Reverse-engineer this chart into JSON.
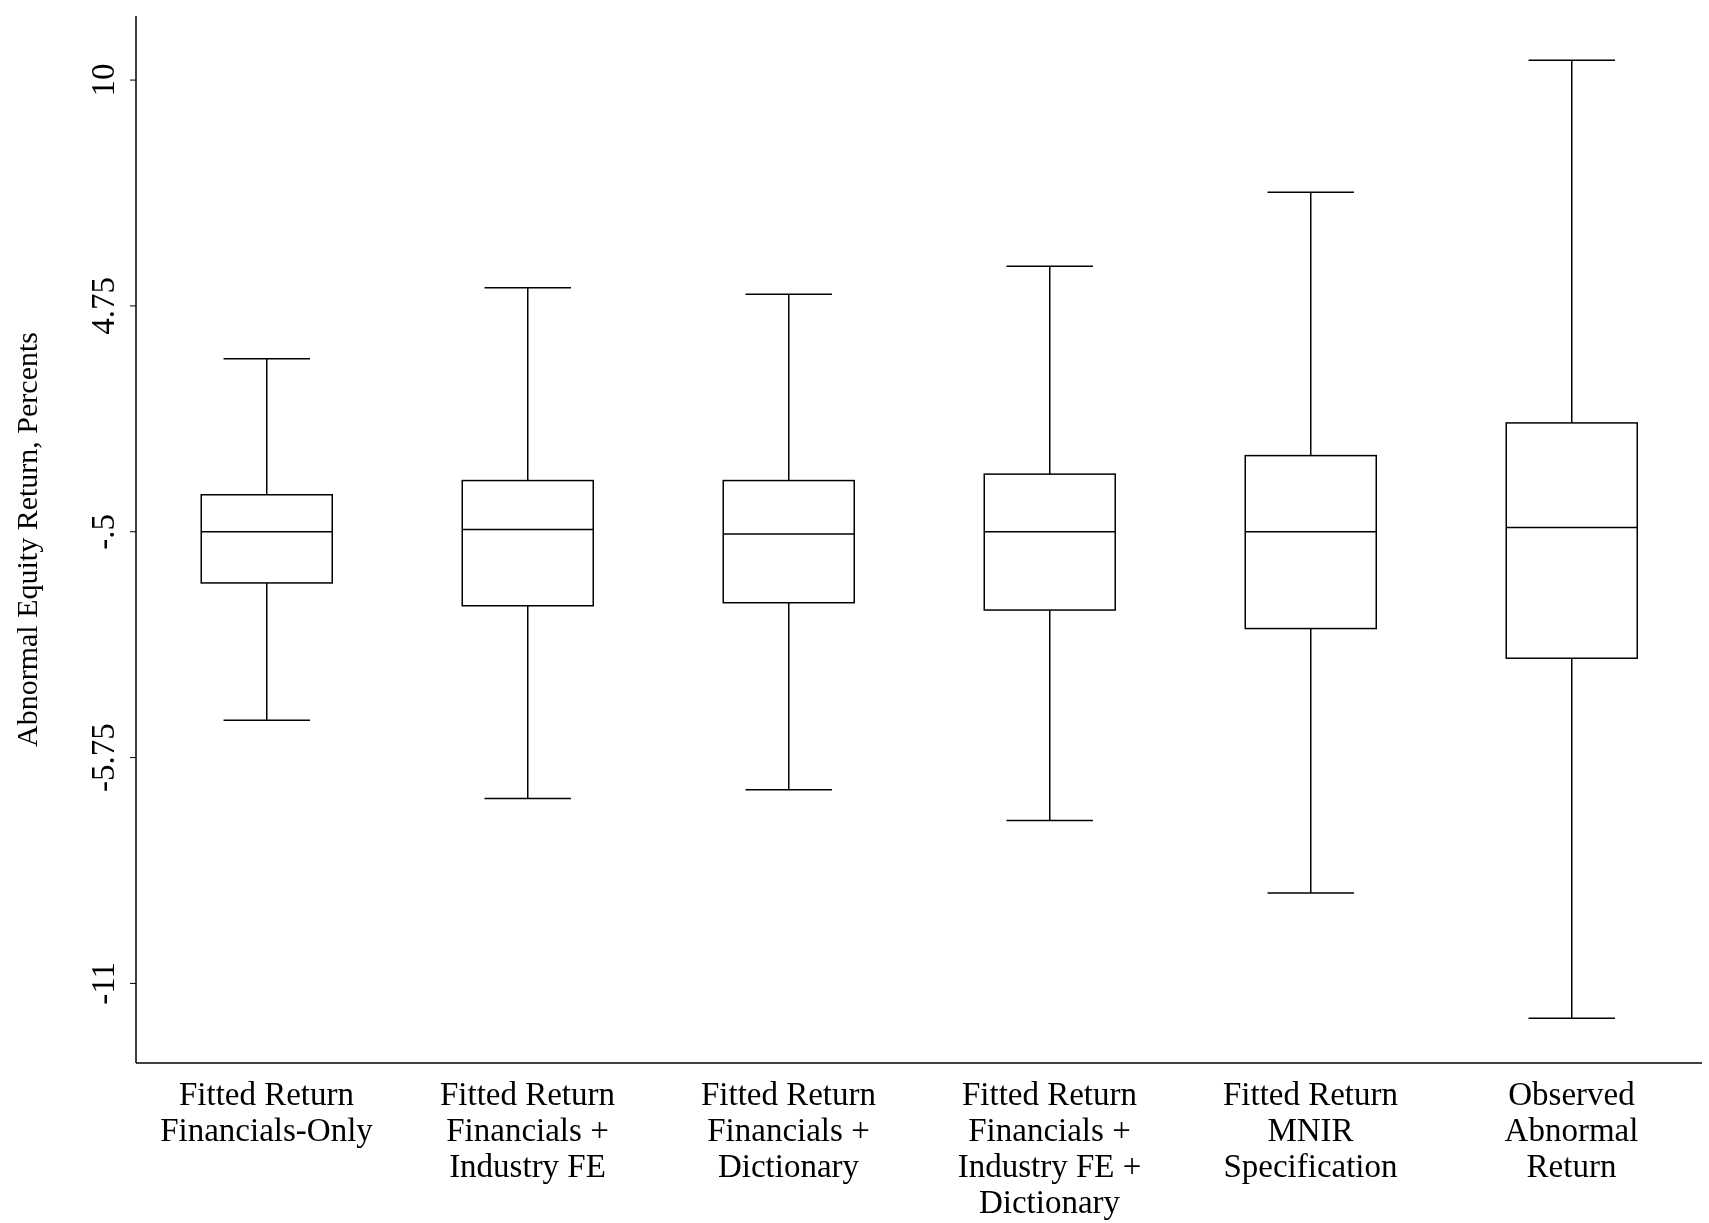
{
  "chart_data": {
    "type": "box",
    "ylabel": "Abnormal Equity Return, Percents",
    "categories": [
      "Fitted Return\nFinancials-Only",
      "Fitted Return\nFinancials +\nIndustry FE",
      "Fitted Return\nFinancials +\nDictionary",
      "Fitted Return\nFinancials +\nIndustry FE +\nDictionary",
      "Fitted Return\nMNIR\nSpecification",
      "Observed\nAbnormal\nReturn"
    ],
    "boxes": [
      {
        "low": -4.88,
        "q1": -1.69,
        "median": -0.5,
        "q3": 0.36,
        "high": 3.52
      },
      {
        "low": -6.7,
        "q1": -2.22,
        "median": -0.45,
        "q3": 0.69,
        "high": 5.17
      },
      {
        "low": -6.5,
        "q1": -2.15,
        "median": -0.55,
        "q3": 0.69,
        "high": 5.02
      },
      {
        "low": -7.21,
        "q1": -2.32,
        "median": -0.5,
        "q3": 0.84,
        "high": 5.67
      },
      {
        "low": -8.9,
        "q1": -2.75,
        "median": -0.5,
        "q3": 1.27,
        "high": 7.39
      },
      {
        "low": -11.81,
        "q1": -3.44,
        "median": -0.4,
        "q3": 2.03,
        "high": 10.46
      }
    ],
    "color": "#000000",
    "ylim": [
      -12.85,
      11.49
    ],
    "yticks": [
      -11,
      -5.75,
      {
        "value": -0.5,
        "label": "-.5"
      },
      4.75,
      10
    ]
  }
}
